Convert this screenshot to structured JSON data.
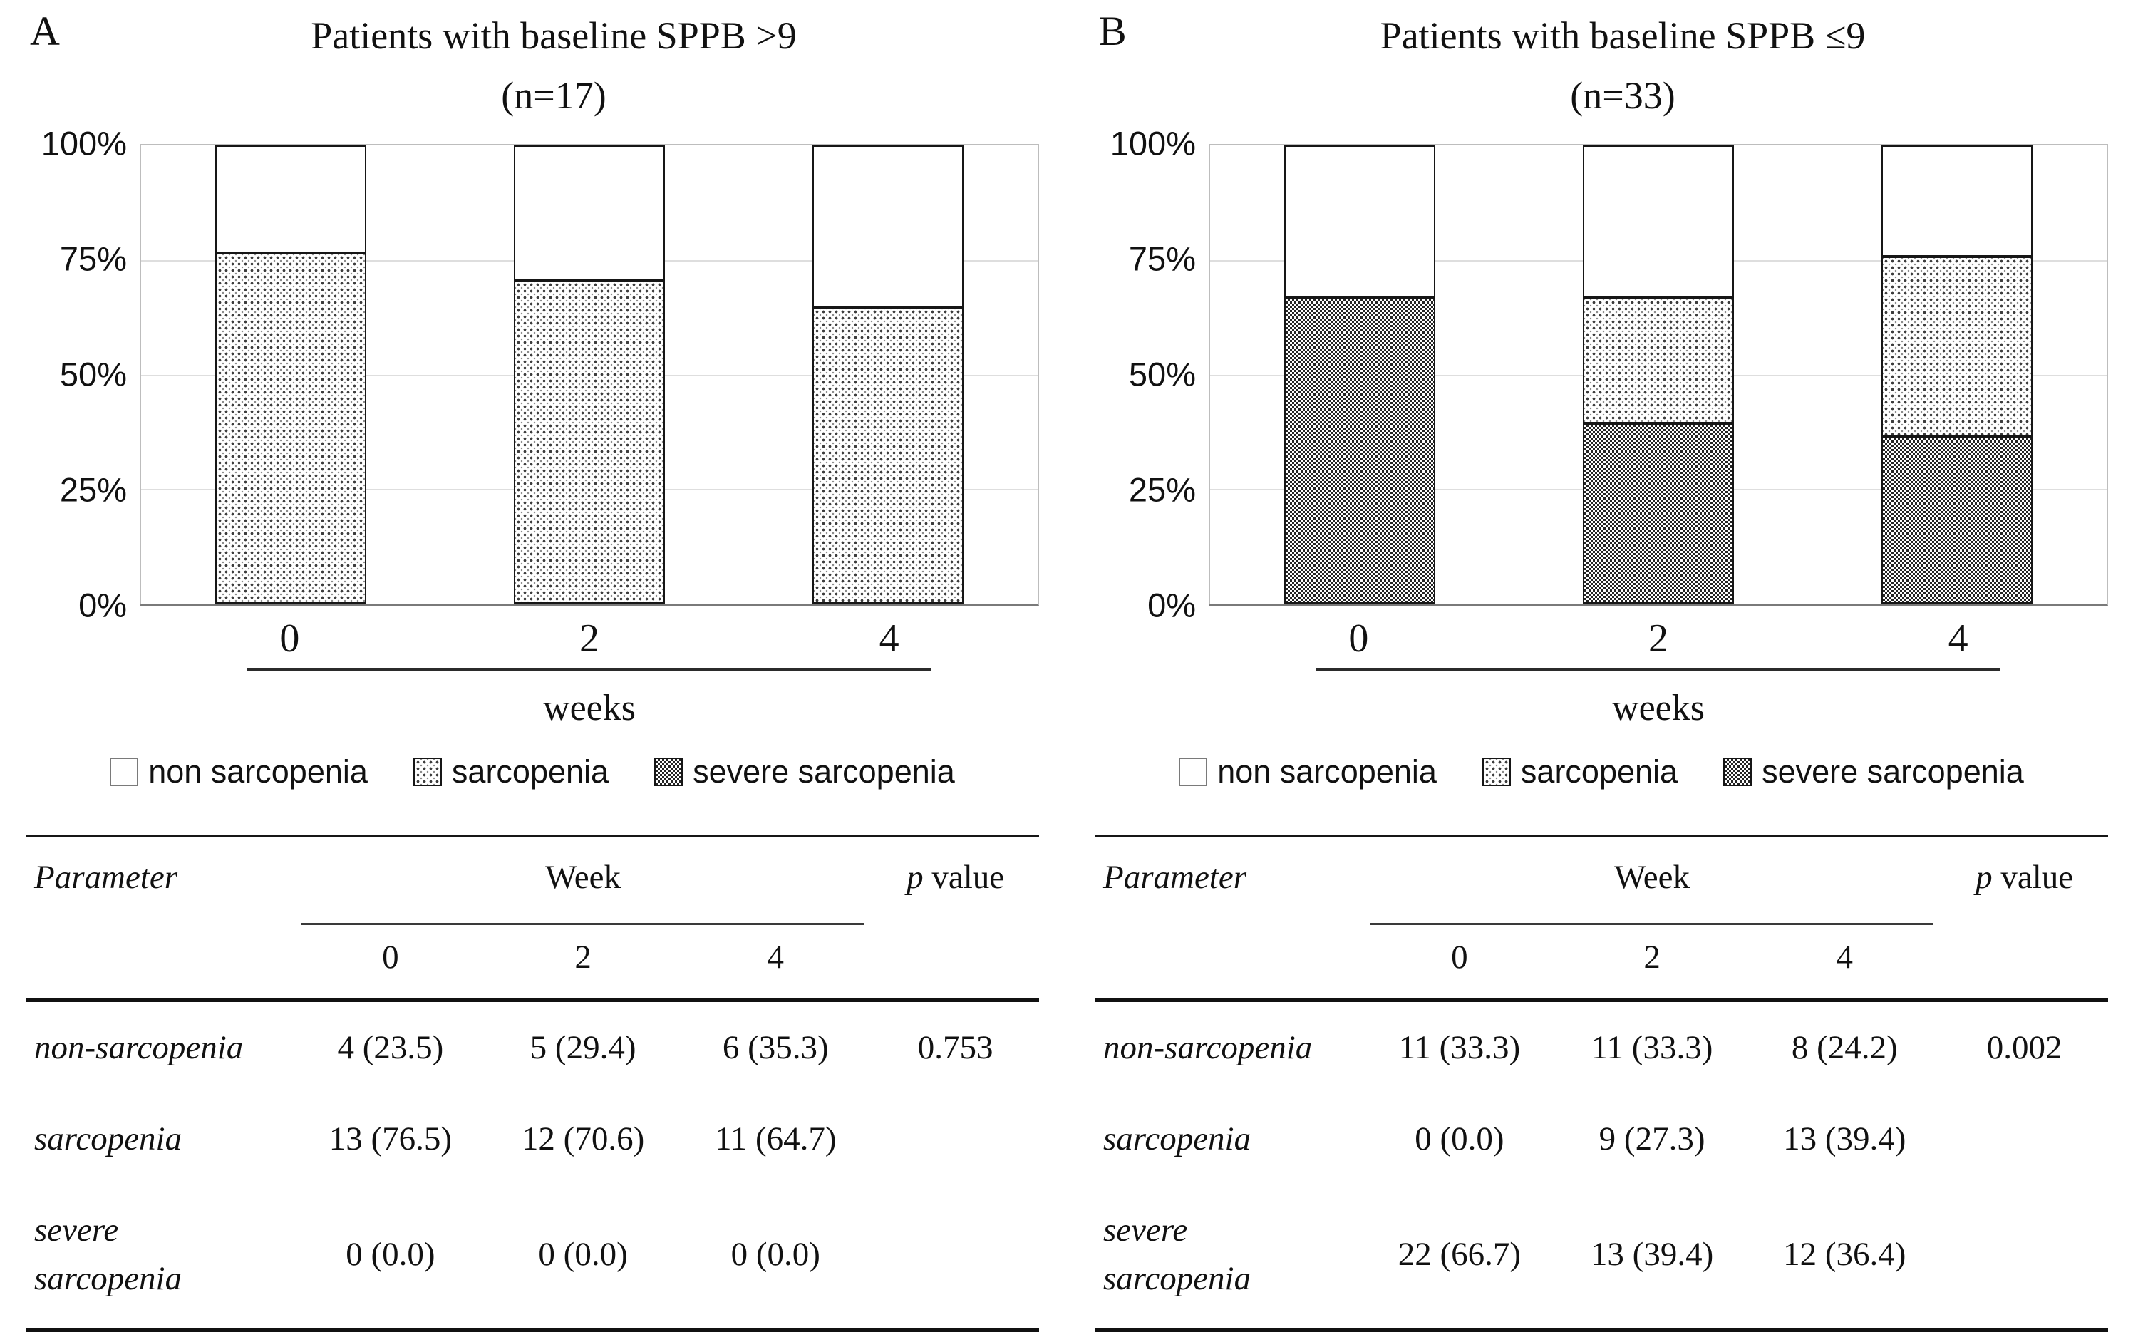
{
  "figure": {
    "panels": [
      {
        "letter": "A",
        "title_line1": "Patients with baseline SPPB >9",
        "title_line2": "(n=17)",
        "table": {
          "param_header": "Parameter",
          "week_header": "Week",
          "p_header_italic": "p",
          "p_header_rest": " value",
          "week_cols": [
            "0",
            "2",
            "4"
          ],
          "rows": [
            {
              "label": "non-sarcopenia",
              "w0": "4 (23.5)",
              "w2": "5 (29.4)",
              "w4": "6 (35.3)",
              "p": "0.753"
            },
            {
              "label": "sarcopenia",
              "w0": "13 (76.5)",
              "w2": "12 (70.6)",
              "w4": "11 (64.7)",
              "p": ""
            },
            {
              "label": "severe sarcopenia",
              "w0": "0 (0.0)",
              "w2": "0 (0.0)",
              "w4": "0 (0.0)",
              "p": ""
            }
          ]
        }
      },
      {
        "letter": "B",
        "title_line1": "Patients with baseline SPPB ≤9",
        "title_line2": "(n=33)",
        "table": {
          "param_header": "Parameter",
          "week_header": "Week",
          "p_header_italic": "p",
          "p_header_rest": " value",
          "week_cols": [
            "0",
            "2",
            "4"
          ],
          "rows": [
            {
              "label": "non-sarcopenia",
              "w0": "11 (33.3)",
              "w2": "11 (33.3)",
              "w4": "8 (24.2)",
              "p": "0.002"
            },
            {
              "label": "sarcopenia",
              "w0": "0 (0.0)",
              "w2": "9 (27.3)",
              "w4": "13 (39.4)",
              "p": ""
            },
            {
              "label": "severe sarcopenia",
              "w0": "22 (66.7)",
              "w2": "13 (39.4)",
              "w4": "12 (36.4)",
              "p": ""
            }
          ]
        }
      }
    ]
  },
  "chart_data": [
    {
      "type": "bar",
      "stacked": true,
      "title": "Patients with baseline SPPB >9 (n=17)",
      "categories": [
        "0",
        "2",
        "4"
      ],
      "xlabel": "weeks",
      "ylabel": "",
      "ylim": [
        0,
        100
      ],
      "yticks": [
        "100%",
        "75%",
        "50%",
        "25%",
        "0%"
      ],
      "grid": true,
      "legend_position": "bottom",
      "series": [
        {
          "name": "non sarcopenia",
          "pattern": "solid-white",
          "values": [
            23.5,
            29.4,
            35.3
          ]
        },
        {
          "name": "sarcopenia",
          "pattern": "dots",
          "values": [
            76.5,
            70.6,
            64.7
          ]
        },
        {
          "name": "severe sarcopenia",
          "pattern": "checker",
          "values": [
            0,
            0,
            0
          ]
        }
      ]
    },
    {
      "type": "bar",
      "stacked": true,
      "title": "Patients with baseline SPPB ≤9 (n=33)",
      "categories": [
        "0",
        "2",
        "4"
      ],
      "xlabel": "weeks",
      "ylabel": "",
      "ylim": [
        0,
        100
      ],
      "yticks": [
        "100%",
        "75%",
        "50%",
        "25%",
        "0%"
      ],
      "grid": true,
      "legend_position": "bottom",
      "series": [
        {
          "name": "non sarcopenia",
          "pattern": "solid-white",
          "values": [
            33.3,
            33.3,
            24.2
          ]
        },
        {
          "name": "sarcopenia",
          "pattern": "dots",
          "values": [
            0,
            27.3,
            39.4
          ]
        },
        {
          "name": "severe sarcopenia",
          "pattern": "checker",
          "values": [
            66.7,
            39.4,
            36.4
          ]
        }
      ]
    }
  ]
}
